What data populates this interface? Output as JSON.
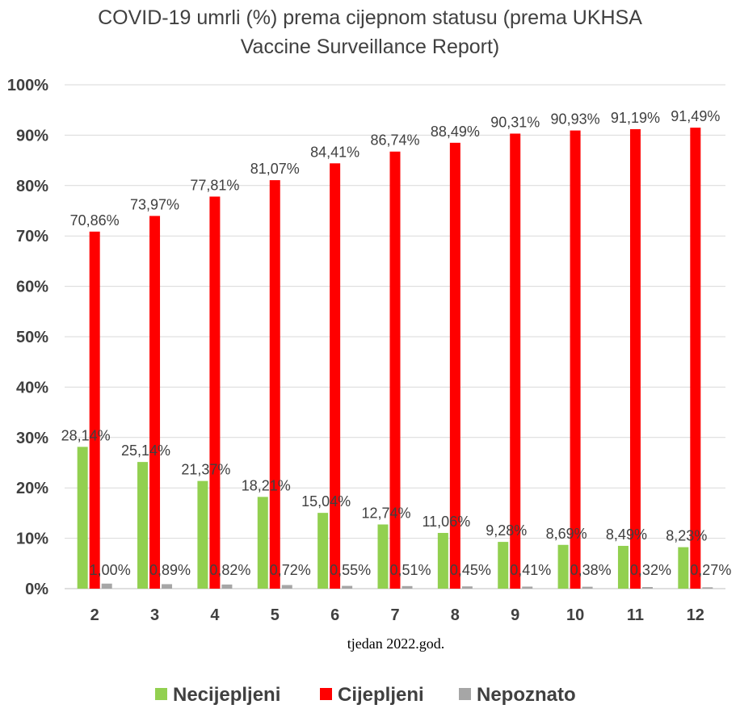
{
  "chart_data": {
    "type": "bar",
    "title": "COVID-19 umrli (%) prema cijepnom statusu (prema UKHSA Vaccine Surveillance Report)",
    "title_lines": [
      "COVID-19 umrli (%) prema cijepnom statusu (prema UKHSA",
      "Vaccine Surveillance Report)"
    ],
    "xlabel": "tjedan 2022.god.",
    "ylabel": "",
    "categories": [
      "2",
      "3",
      "4",
      "5",
      "6",
      "7",
      "8",
      "9",
      "10",
      "11",
      "12"
    ],
    "ylim": [
      0,
      100
    ],
    "yticks": [
      0,
      10,
      20,
      30,
      40,
      50,
      60,
      70,
      80,
      90,
      100
    ],
    "ytick_labels": [
      "0%",
      "10%",
      "20%",
      "30%",
      "40%",
      "50%",
      "60%",
      "70%",
      "80%",
      "90%",
      "100%"
    ],
    "grid": true,
    "legend_position": "bottom",
    "series": [
      {
        "name": "Necijepljeni",
        "color": "#92d050",
        "values": [
          28.14,
          25.14,
          21.37,
          18.21,
          15.04,
          12.74,
          11.06,
          9.28,
          8.69,
          8.49,
          8.23
        ],
        "labels": [
          "28,14%",
          "25,14%",
          "21,37%",
          "18,21%",
          "15,04%",
          "12,74%",
          "11,06%",
          "9,28%",
          "8,69%",
          "8,49%",
          "8,23%"
        ]
      },
      {
        "name": "Cijepljeni",
        "color": "#ff0000",
        "values": [
          70.86,
          73.97,
          77.81,
          81.07,
          84.41,
          86.74,
          88.49,
          90.31,
          90.93,
          91.19,
          91.49
        ],
        "labels": [
          "70,86%",
          "73,97%",
          "77,81%",
          "81,07%",
          "84,41%",
          "86,74%",
          "88,49%",
          "90,31%",
          "90,93%",
          "91,19%",
          "91,49%"
        ]
      },
      {
        "name": "Nepoznato",
        "color": "#a6a6a6",
        "values": [
          1.0,
          0.89,
          0.82,
          0.72,
          0.55,
          0.51,
          0.45,
          0.41,
          0.38,
          0.32,
          0.27
        ],
        "labels": [
          "1,00%",
          "0,89%",
          "0,82%",
          "0,72%",
          "0,55%",
          "0,51%",
          "0,45%",
          "0,41%",
          "0,38%",
          "0,32%",
          "0,27%"
        ]
      }
    ]
  }
}
